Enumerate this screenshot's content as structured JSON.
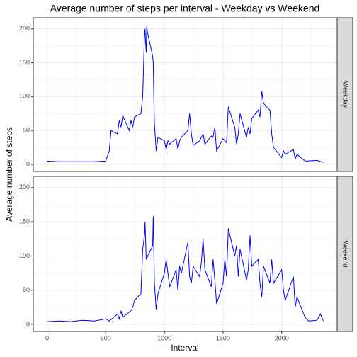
{
  "chart_data": {
    "type": "line",
    "title": "Average number of steps per interval - Weekday vs Weekend",
    "x_label": "Interval",
    "y_label": "Average number of steps",
    "facet": true,
    "xlim": [
      -117.75,
      2472.75
    ],
    "xticks": [
      0,
      500,
      1000,
      1500,
      2000
    ],
    "xminor": [
      250,
      750,
      1250,
      1750,
      2250
    ],
    "ylim": [
      -10.3,
      216.3
    ],
    "yticks": [
      0,
      50,
      100,
      150,
      200
    ],
    "yminor": [
      25,
      75,
      125,
      175
    ],
    "grid": true,
    "series": [
      {
        "name": "Weekday",
        "color": "#0000ff",
        "x": [
          0,
          100,
          200,
          300,
          400,
          500,
          530,
          545,
          600,
          615,
          630,
          645,
          700,
          715,
          730,
          745,
          800,
          815,
          830,
          835,
          840,
          845,
          850,
          855,
          900,
          905,
          910,
          915,
          930,
          945,
          1000,
          1015,
          1030,
          1045,
          1100,
          1115,
          1130,
          1145,
          1200,
          1215,
          1230,
          1245,
          1300,
          1315,
          1330,
          1345,
          1400,
          1415,
          1430,
          1445,
          1500,
          1530,
          1545,
          1600,
          1615,
          1630,
          1645,
          1700,
          1715,
          1730,
          1745,
          1800,
          1815,
          1830,
          1845,
          1900,
          1915,
          1930,
          2000,
          2015,
          2030,
          2100,
          2115,
          2130,
          2200,
          2300,
          2355
        ],
        "values": [
          5,
          4,
          4,
          4,
          4,
          5,
          20,
          50,
          45,
          65,
          55,
          72,
          50,
          65,
          55,
          70,
          75,
          100,
          190,
          200,
          180,
          165,
          205,
          195,
          160,
          150,
          100,
          60,
          20,
          40,
          35,
          22,
          35,
          30,
          38,
          22,
          35,
          40,
          50,
          75,
          45,
          28,
          35,
          40,
          45,
          30,
          42,
          40,
          55,
          20,
          38,
          32,
          85,
          55,
          30,
          45,
          75,
          40,
          55,
          45,
          68,
          80,
          70,
          108,
          90,
          80,
          45,
          25,
          10,
          20,
          15,
          22,
          8,
          15,
          5,
          6,
          3
        ]
      },
      {
        "name": "Weekend",
        "color": "#0000ff",
        "x": [
          0,
          100,
          200,
          300,
          400,
          500,
          530,
          600,
          615,
          630,
          645,
          700,
          715,
          730,
          745,
          800,
          815,
          830,
          835,
          845,
          900,
          905,
          915,
          930,
          945,
          1000,
          1015,
          1030,
          1045,
          1100,
          1115,
          1130,
          1145,
          1200,
          1215,
          1230,
          1245,
          1300,
          1315,
          1330,
          1345,
          1400,
          1415,
          1430,
          1445,
          1500,
          1515,
          1530,
          1545,
          1600,
          1615,
          1630,
          1645,
          1700,
          1715,
          1730,
          1745,
          1800,
          1815,
          1830,
          1845,
          1900,
          1915,
          1930,
          2000,
          2015,
          2030,
          2100,
          2115,
          2130,
          2200,
          2230,
          2300,
          2330,
          2355
        ],
        "values": [
          4,
          5,
          4,
          6,
          5,
          8,
          5,
          15,
          8,
          20,
          10,
          18,
          20,
          25,
          35,
          45,
          110,
          130,
          150,
          95,
          115,
          158,
          60,
          22,
          45,
          75,
          95,
          75,
          55,
          80,
          50,
          85,
          75,
          120,
          70,
          60,
          85,
          70,
          90,
          125,
          80,
          55,
          95,
          65,
          30,
          60,
          95,
          70,
          140,
          100,
          115,
          70,
          110,
          65,
          80,
          130,
          85,
          95,
          60,
          40,
          85,
          60,
          95,
          60,
          80,
          50,
          35,
          70,
          25,
          40,
          10,
          5,
          6,
          15,
          5
        ]
      }
    ]
  }
}
